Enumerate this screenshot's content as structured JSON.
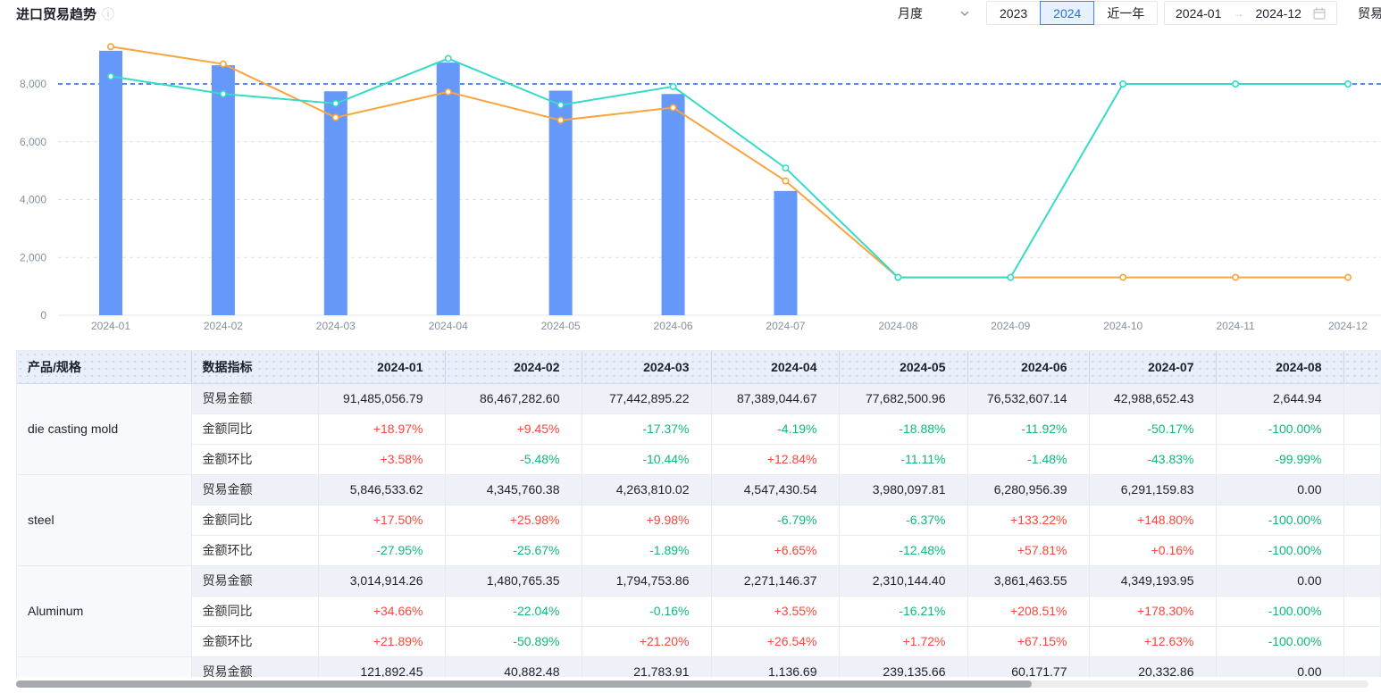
{
  "header": {
    "title": "进口贸易趋势",
    "controls": {
      "period_select": {
        "value": "月度",
        "icon": "chevron-down-icon"
      },
      "year_buttons": [
        {
          "label": "2023",
          "active": false
        },
        {
          "label": "2024",
          "active": true
        },
        {
          "label": "近一年",
          "active": false
        }
      ],
      "date_range": {
        "start": "2024-01",
        "separator": "→",
        "end": "2024-12",
        "icon": "calendar-icon"
      },
      "partial_right_text": "贸易"
    }
  },
  "colors": {
    "bar": "#6698fa",
    "line_orange": "#f9a43f",
    "line_teal": "#35dbc5",
    "markline": "#5b8af5",
    "axis_label": "#86909c",
    "grid": "#dde0e6",
    "positive": "#f5483b",
    "negative": "#10b77f"
  },
  "chart_data": {
    "type": "bar",
    "title": "进口贸易趋势",
    "xlabel": "",
    "ylabel": "",
    "categories": [
      "2024-01",
      "2024-02",
      "2024-03",
      "2024-04",
      "2024-05",
      "2024-06",
      "2024-07",
      "2024-08",
      "2024-09",
      "2024-10",
      "2024-11",
      "2024-12"
    ],
    "series": [
      {
        "name": "trade-amount-bar",
        "type": "bar",
        "values": [
          9148,
          8647,
          7744,
          8739,
          7768,
          7653,
          4299,
          0,
          0,
          0,
          0,
          0
        ]
      },
      {
        "name": "orange-line",
        "type": "line",
        "values": [
          9290,
          8690,
          6840,
          7725,
          6745,
          7180,
          4645,
          1310,
          1310,
          1310,
          1310,
          1310
        ]
      },
      {
        "name": "teal-line",
        "type": "line",
        "values": [
          8260,
          7655,
          7325,
          8880,
          7270,
          7910,
          5090,
          1310,
          1310,
          8000,
          8000,
          8000
        ]
      }
    ],
    "markline": {
      "value": 8000
    },
    "y_ticks": [
      {
        "value": 0,
        "label": "0"
      },
      {
        "value": 2000,
        "label": "2,000"
      },
      {
        "value": 4000,
        "label": "4,000"
      },
      {
        "value": 6000,
        "label": "6,000"
      },
      {
        "value": 8000,
        "label": "8,000"
      }
    ],
    "ylim": [
      0,
      9830
    ],
    "grid": "dashed-horizontal",
    "legend_position": "none"
  },
  "table": {
    "col_headers": [
      "产品/规格",
      "数据指标",
      "2024-01",
      "2024-02",
      "2024-03",
      "2024-04",
      "2024-05",
      "2024-06",
      "2024-07",
      "2024-08",
      ""
    ],
    "groups": [
      {
        "product": "die casting mold",
        "rows": [
          {
            "indicator": "贸易金额",
            "kind": "amount",
            "values": [
              "91,485,056.79",
              "86,467,282.60",
              "77,442,895.22",
              "87,389,044.67",
              "77,682,500.96",
              "76,532,607.14",
              "42,988,652.43",
              "2,644.94"
            ]
          },
          {
            "indicator": "金额同比",
            "kind": "pct",
            "values": [
              "+18.97%",
              "+9.45%",
              "-17.37%",
              "-4.19%",
              "-18.88%",
              "-11.92%",
              "-50.17%",
              "-100.00%"
            ]
          },
          {
            "indicator": "金额环比",
            "kind": "pct",
            "values": [
              "+3.58%",
              "-5.48%",
              "-10.44%",
              "+12.84%",
              "-11.11%",
              "-1.48%",
              "-43.83%",
              "-99.99%"
            ]
          }
        ]
      },
      {
        "product": "steel",
        "rows": [
          {
            "indicator": "贸易金额",
            "kind": "amount",
            "values": [
              "5,846,533.62",
              "4,345,760.38",
              "4,263,810.02",
              "4,547,430.54",
              "3,980,097.81",
              "6,280,956.39",
              "6,291,159.83",
              "0.00"
            ]
          },
          {
            "indicator": "金额同比",
            "kind": "pct",
            "values": [
              "+17.50%",
              "+25.98%",
              "+9.98%",
              "-6.79%",
              "-6.37%",
              "+133.22%",
              "+148.80%",
              "-100.00%"
            ]
          },
          {
            "indicator": "金额环比",
            "kind": "pct",
            "values": [
              "-27.95%",
              "-25.67%",
              "-1.89%",
              "+6.65%",
              "-12.48%",
              "+57.81%",
              "+0.16%",
              "-100.00%"
            ]
          }
        ]
      },
      {
        "product": "Aluminum",
        "rows": [
          {
            "indicator": "贸易金额",
            "kind": "amount",
            "values": [
              "3,014,914.26",
              "1,480,765.35",
              "1,794,753.86",
              "2,271,146.37",
              "2,310,144.40",
              "3,861,463.55",
              "4,349,193.95",
              "0.00"
            ]
          },
          {
            "indicator": "金额同比",
            "kind": "pct",
            "values": [
              "+34.66%",
              "-22.04%",
              "-0.16%",
              "+3.55%",
              "-16.21%",
              "+208.51%",
              "+178.30%",
              "-100.00%"
            ]
          },
          {
            "indicator": "金额环比",
            "kind": "pct",
            "values": [
              "+21.89%",
              "-50.89%",
              "+21.20%",
              "+26.54%",
              "+1.72%",
              "+67.15%",
              "+12.63%",
              "-100.00%"
            ]
          }
        ]
      },
      {
        "product": "",
        "rows": [
          {
            "indicator": "贸易金额",
            "kind": "amount",
            "values": [
              "121,892.45",
              "40,882.48",
              "21,783.91",
              "1,136.69",
              "239,135.66",
              "60,171.77",
              "20,332.86",
              "0.00"
            ]
          }
        ]
      }
    ]
  }
}
